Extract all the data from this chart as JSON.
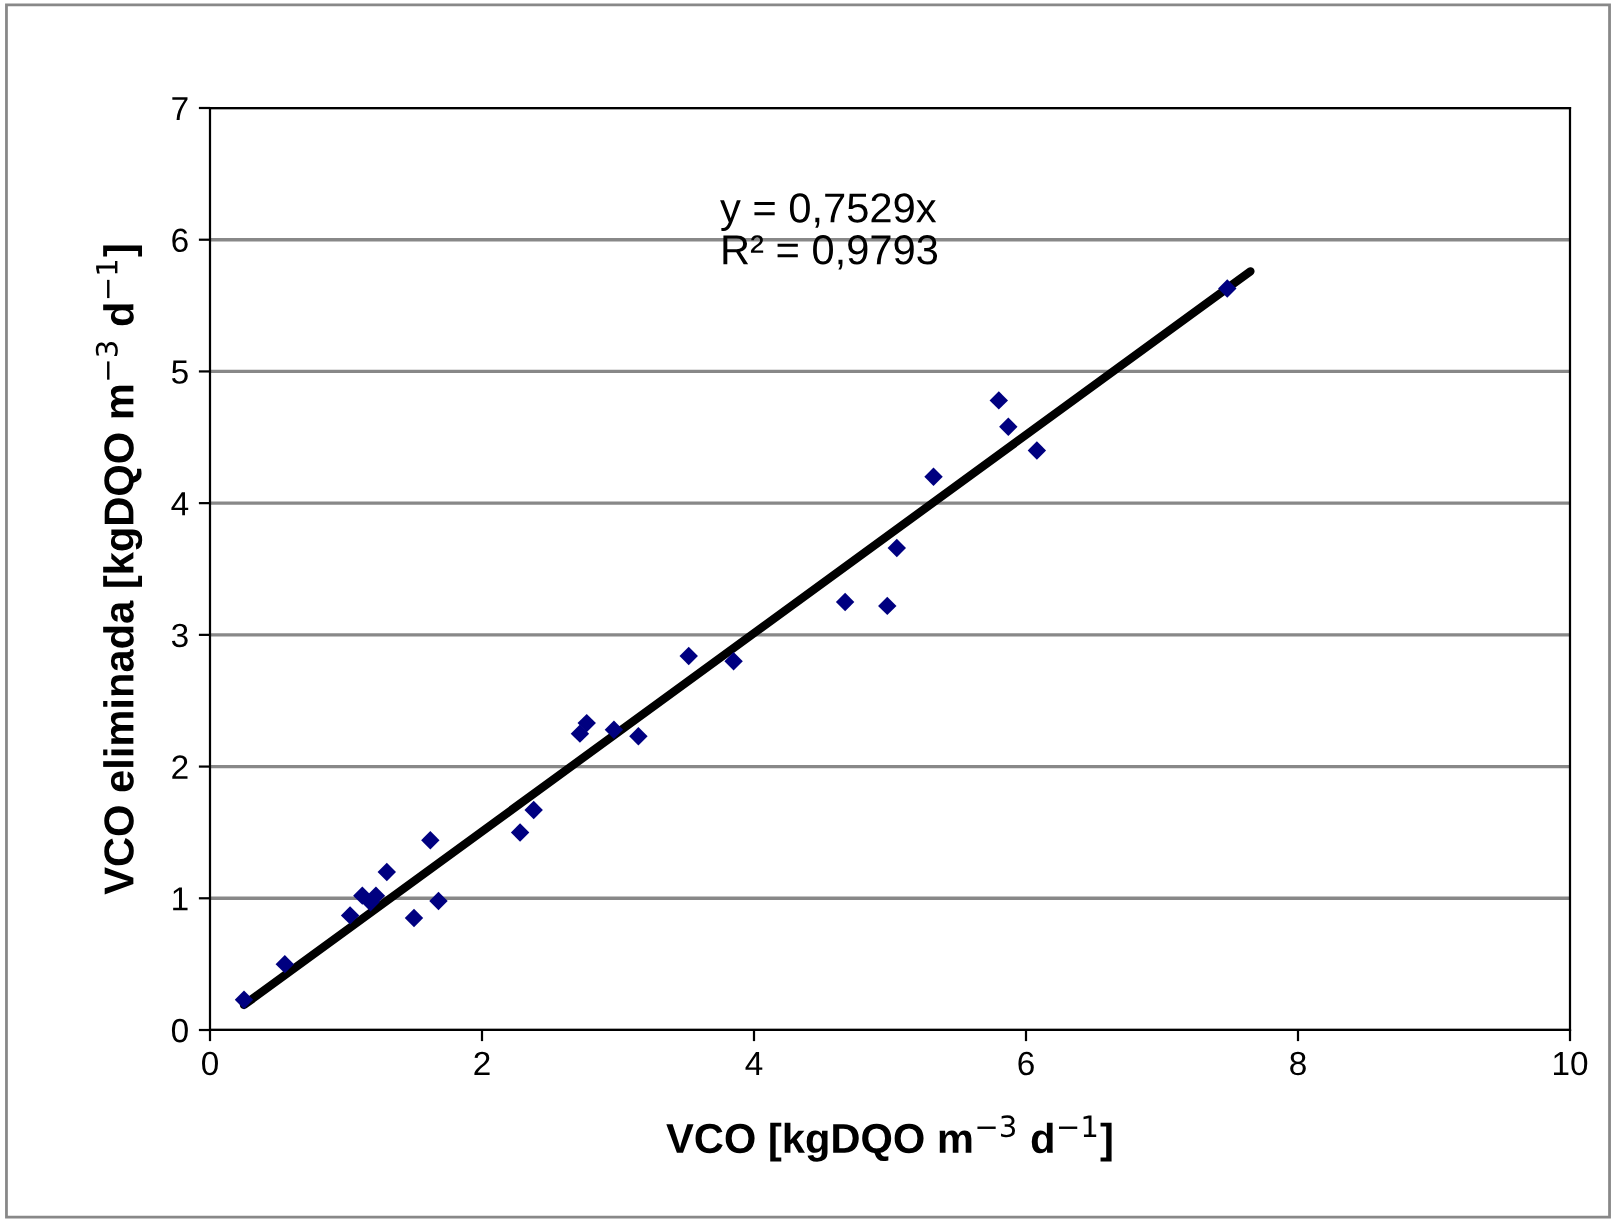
{
  "chart_data": {
    "type": "scatter",
    "xlabel": "VCO [kgDQO m$^{−3}$ d$^{−1}$]",
    "ylabel": "VCO eliminada [kgDQO m$^{−3}$ d$^{−1}$]",
    "xlim": [
      0,
      10
    ],
    "ylim": [
      0,
      7
    ],
    "xticks": [
      0,
      2,
      4,
      6,
      8,
      10
    ],
    "yticks": [
      0,
      1,
      2,
      3,
      4,
      5,
      6,
      7
    ],
    "grid": "y",
    "legend": false,
    "annotations": [
      "y = 0,7529x\nR² = 0,9793"
    ],
    "series": [
      {
        "marker": "diamond",
        "color": "#000080",
        "x": [
          0.25,
          0.55,
          1.03,
          1.12,
          1.18,
          1.22,
          1.3,
          1.5,
          1.62,
          1.68,
          2.28,
          2.38,
          2.72,
          2.77,
          2.97,
          3.15,
          3.52,
          3.85,
          4.67,
          4.98,
          5.05,
          5.32,
          5.8,
          5.87,
          6.08,
          7.48
        ],
        "values": [
          0.23,
          0.5,
          0.87,
          1.02,
          0.97,
          1.02,
          1.2,
          0.85,
          1.44,
          0.98,
          1.5,
          1.67,
          2.25,
          2.33,
          2.28,
          2.23,
          2.84,
          2.8,
          3.25,
          3.22,
          3.66,
          4.2,
          4.78,
          4.58,
          4.4,
          5.63
        ]
      },
      {
        "type": "line",
        "color": "#000000",
        "x": [
          0.25,
          7.65
        ],
        "values": [
          0.19,
          5.76
        ]
      }
    ]
  }
}
